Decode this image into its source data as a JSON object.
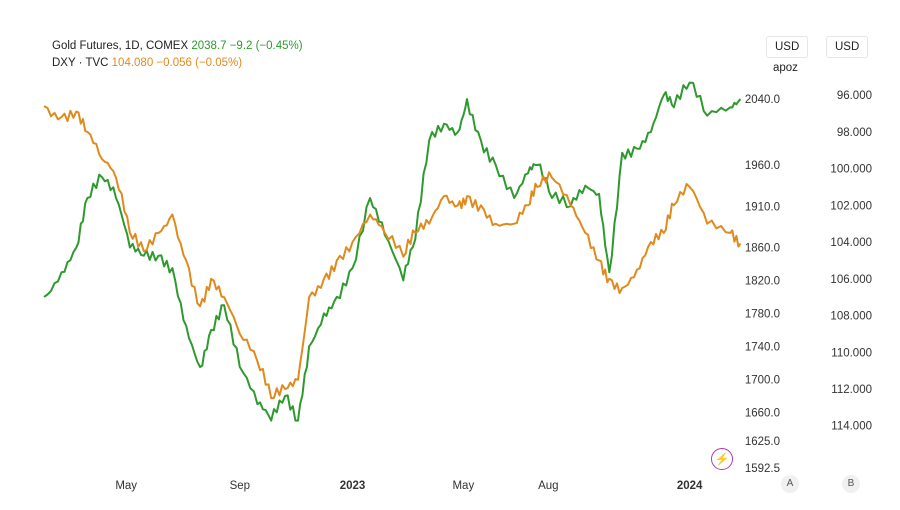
{
  "legend": {
    "gold": {
      "name": "Gold Futures, 1D, COMEX",
      "value": "2038.7",
      "change": "−9.2 (−0.45%)"
    },
    "dxy": {
      "name": "DXY · TVC",
      "value": "104.080",
      "change": "−0.056 (−0.05%)"
    }
  },
  "currency_left": "USD",
  "currency_right": "USD",
  "apoz_label": "apoz",
  "scale_buttons": {
    "a": "A",
    "b": "B"
  },
  "colors": {
    "gold": "#2e9a2e",
    "dxy": "#e08a1e",
    "axis_text": "#333333",
    "bolt": "#b03aa8"
  },
  "icons": {
    "bolt": "lightning-icon"
  },
  "chart_data": {
    "type": "line",
    "title": "",
    "x_tick_labels": [
      "May",
      "Sep",
      "2023",
      "May",
      "Aug",
      "2024"
    ],
    "x_tick_dates": [
      "2022-05-01",
      "2022-09-01",
      "2023-01-01",
      "2023-05-01",
      "2023-08-01",
      "2024-01-01"
    ],
    "x_tick_bold": [
      false,
      false,
      true,
      false,
      false,
      true
    ],
    "xlim": [
      "2022-02-01",
      "2024-03-15"
    ],
    "gold_axis": {
      "ticks": [
        2040.0,
        1960.0,
        1910.0,
        1860.0,
        1820.0,
        1780.0,
        1740.0,
        1700.0,
        1660.0,
        1625.0,
        1592.5
      ],
      "tick_labels": [
        "2040.0",
        "1960.0",
        "1910.0",
        "1860.0",
        "1820.0",
        "1780.0",
        "1740.0",
        "1700.0",
        "1660.0",
        "1625.0",
        "1592.5"
      ],
      "ylim": [
        1592.5,
        2085
      ]
    },
    "dxy_axis": {
      "ticks": [
        96,
        98,
        100,
        102,
        104,
        106,
        108,
        110,
        112,
        114
      ],
      "tick_labels": [
        "96.000",
        "98.000",
        "100.000",
        "102.000",
        "104.000",
        "106.000",
        "108.000",
        "110.000",
        "112.000",
        "114.000"
      ],
      "inverted": true,
      "ylim": [
        94.2,
        116.3
      ]
    },
    "series": [
      {
        "name": "Gold Futures, 1D, COMEX",
        "axis": "gold",
        "x": [
          "2022-02-01",
          "2022-02-20",
          "2022-03-08",
          "2022-03-20",
          "2022-04-05",
          "2022-04-20",
          "2022-05-05",
          "2022-05-20",
          "2022-06-05",
          "2022-06-20",
          "2022-07-05",
          "2022-07-20",
          "2022-08-01",
          "2022-08-15",
          "2022-09-01",
          "2022-09-20",
          "2022-10-05",
          "2022-10-20",
          "2022-11-03",
          "2022-11-15",
          "2022-12-01",
          "2022-12-15",
          "2023-01-01",
          "2023-01-20",
          "2023-02-05",
          "2023-02-25",
          "2023-03-10",
          "2023-03-25",
          "2023-04-10",
          "2023-04-25",
          "2023-05-05",
          "2023-05-20",
          "2023-06-05",
          "2023-06-25",
          "2023-07-10",
          "2023-07-20",
          "2023-08-05",
          "2023-08-25",
          "2023-09-10",
          "2023-09-25",
          "2023-10-06",
          "2023-10-20",
          "2023-11-05",
          "2023-11-20",
          "2023-12-04",
          "2023-12-15",
          "2024-01-01",
          "2024-01-20",
          "2024-02-14",
          "2024-02-25"
        ],
        "y": [
          1800,
          1830,
          1860,
          1920,
          1945,
          1920,
          1860,
          1850,
          1850,
          1835,
          1765,
          1715,
          1760,
          1790,
          1715,
          1670,
          1650,
          1680,
          1650,
          1740,
          1780,
          1800,
          1835,
          1920,
          1875,
          1820,
          1870,
          1990,
          2010,
          2000,
          2040,
          1990,
          1960,
          1920,
          1950,
          1960,
          1920,
          1910,
          1935,
          1925,
          1830,
          1975,
          1980,
          2000,
          2045,
          2030,
          2060,
          2020,
          2030,
          2040
        ]
      },
      {
        "name": "DXY · TVC",
        "axis": "dxy",
        "x": [
          "2022-02-01",
          "2022-02-20",
          "2022-03-08",
          "2022-03-20",
          "2022-04-05",
          "2022-04-20",
          "2022-05-05",
          "2022-05-20",
          "2022-06-05",
          "2022-06-20",
          "2022-07-05",
          "2022-07-20",
          "2022-08-01",
          "2022-08-15",
          "2022-09-01",
          "2022-09-20",
          "2022-10-05",
          "2022-10-20",
          "2022-11-03",
          "2022-11-15",
          "2022-12-01",
          "2022-12-15",
          "2023-01-01",
          "2023-01-20",
          "2023-02-05",
          "2023-02-25",
          "2023-03-10",
          "2023-03-25",
          "2023-04-10",
          "2023-04-25",
          "2023-05-05",
          "2023-05-20",
          "2023-06-05",
          "2023-06-25",
          "2023-07-10",
          "2023-07-20",
          "2023-08-05",
          "2023-08-25",
          "2023-09-10",
          "2023-09-25",
          "2023-10-06",
          "2023-10-20",
          "2023-11-05",
          "2023-11-20",
          "2023-12-04",
          "2023-12-15",
          "2024-01-01",
          "2024-01-20",
          "2024-02-14",
          "2024-02-25"
        ],
        "y": [
          96.6,
          97.2,
          96.9,
          98.0,
          99.5,
          100.5,
          103.5,
          104.5,
          103.5,
          102.5,
          105.0,
          107.5,
          106.0,
          107.0,
          109.0,
          110.5,
          112.5,
          112.0,
          111.5,
          107.0,
          106.0,
          105.0,
          104.0,
          102.5,
          103.5,
          104.8,
          103.5,
          103.0,
          101.5,
          102.0,
          101.5,
          102.0,
          103.0,
          103.0,
          102.0,
          101.0,
          100.5,
          102.0,
          103.5,
          105.0,
          106.0,
          106.5,
          105.5,
          104.0,
          103.5,
          102.0,
          101.0,
          103.0,
          103.5,
          104.08
        ]
      }
    ]
  }
}
